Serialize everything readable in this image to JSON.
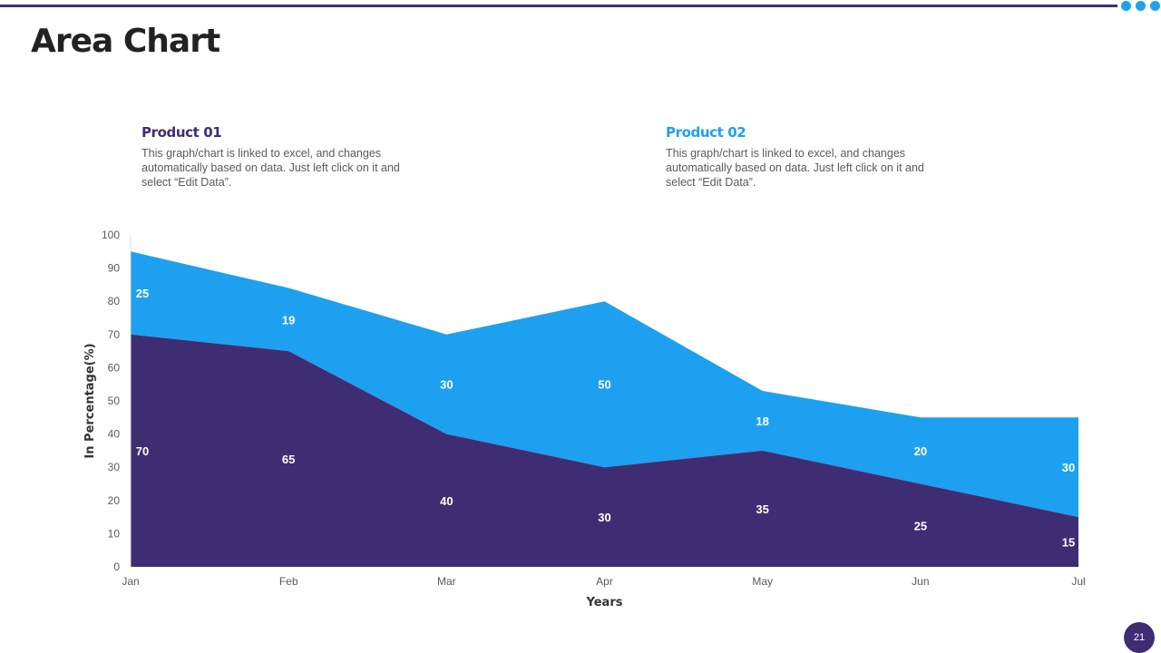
{
  "slide": {
    "title": "Area Chart",
    "page_number": "21"
  },
  "descriptions": [
    {
      "heading": "Product 01",
      "text": "This graph/chart is linked to excel, and changes automatically based on data. Just left click on it and select “Edit Data”.",
      "color": "#3f2d73"
    },
    {
      "heading": "Product 02",
      "text": "This graph/chart is linked to excel, and changes automatically based on data. Just left click on it and select “Edit Data”.",
      "color": "#1ea0f0"
    }
  ],
  "colors": {
    "accent_dark": "#3f2d73",
    "accent_light": "#1ea0f0"
  },
  "chart_data": {
    "type": "area",
    "stacked": true,
    "categories": [
      "Jan",
      "Feb",
      "Mar",
      "Apr",
      "May",
      "Jun",
      "Jul"
    ],
    "series": [
      {
        "name": "Product 01",
        "values": [
          70,
          65,
          40,
          30,
          35,
          25,
          15
        ],
        "color": "#3f2d73"
      },
      {
        "name": "Product 02",
        "values": [
          25,
          19,
          30,
          50,
          18,
          20,
          30
        ],
        "color": "#1ea0f0"
      }
    ],
    "xlabel": "Years",
    "ylabel": "In Percentage(%)",
    "ylim": [
      0,
      100
    ],
    "yticks": [
      0,
      10,
      20,
      30,
      40,
      50,
      60,
      70,
      80,
      90,
      100
    ],
    "data_labels": true,
    "grid": false,
    "legend": "none"
  }
}
